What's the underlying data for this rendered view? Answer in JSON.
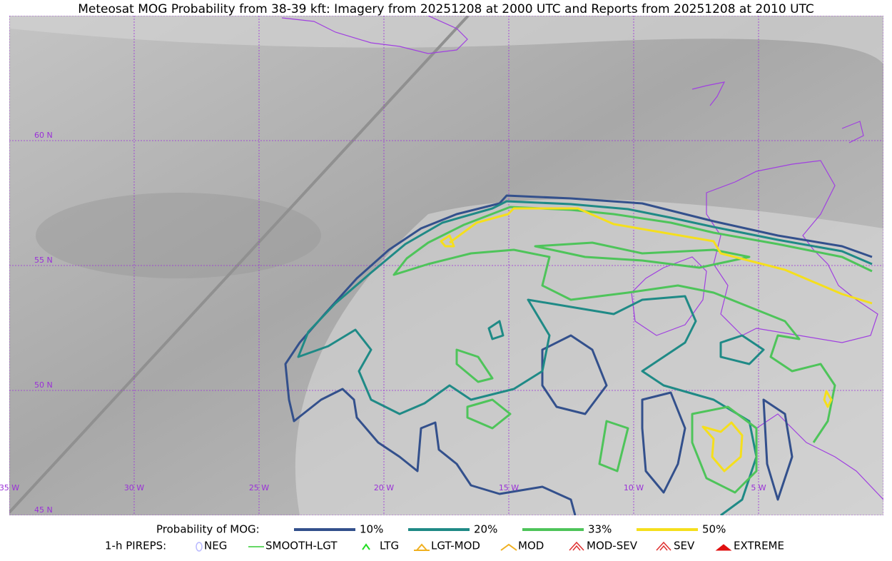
{
  "title": "Meteosat MOG Probability from 38-39 kft: Imagery from 20251208 at 2000 UTC and Reports from 20251208 at 2010 UTC",
  "grid_labels": {
    "lat": [
      "60 N",
      "55 N",
      "50 N",
      "45 N"
    ],
    "lon": [
      "35 W",
      "30 W",
      "25 W",
      "20 W",
      "15 W",
      "10 W",
      "5 W"
    ]
  },
  "legend": {
    "probability": {
      "label": "Probability of MOG:",
      "items": [
        {
          "label": "10%",
          "color": "#33508c"
        },
        {
          "label": "20%",
          "color": "#1f8a86"
        },
        {
          "label": "33%",
          "color": "#4ec45a"
        },
        {
          "label": "50%",
          "color": "#f5df1c"
        }
      ]
    },
    "pireps": {
      "label": "1-h PIREPS:",
      "items": [
        {
          "label": "NEG",
          "color": "#b8b8ff"
        },
        {
          "label": "SMOOTH-LGT",
          "color": "#33cc33"
        },
        {
          "label": "LTG",
          "color": "#22dd22"
        },
        {
          "label": "LGT-MOD",
          "color": "#f0b020"
        },
        {
          "label": "MOD",
          "color": "#f0b020"
        },
        {
          "label": "MOD-SEV",
          "color": "#e03030"
        },
        {
          "label": "SEV",
          "color": "#e03030"
        },
        {
          "label": "EXTREME",
          "color": "#e01010"
        }
      ]
    }
  }
}
